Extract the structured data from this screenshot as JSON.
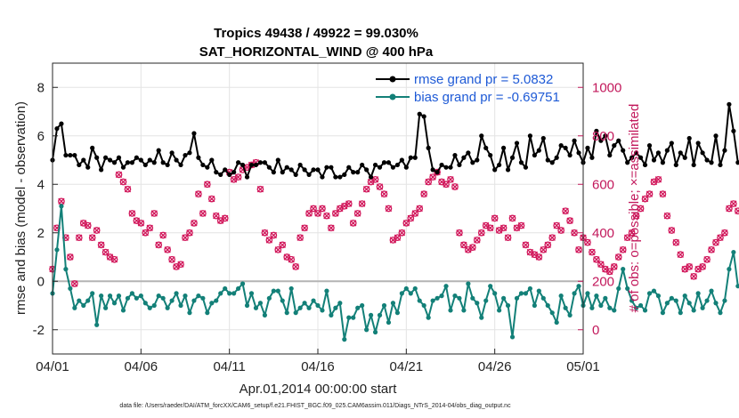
{
  "chart_data": {
    "type": "line",
    "title_line1": "Tropics 49438 / 49922 = 99.030%",
    "title_line2": "SAT_HORIZONTAL_WIND @ 400 hPa",
    "xlabel": "Apr.01,2014 00:00:00 start",
    "ylabel_left": "rmse and bias (model - observation)",
    "ylabel_right": "# of obs: o=possible; ×=assimilated",
    "x_tick_labels": [
      "04/01",
      "04/06",
      "04/11",
      "04/16",
      "04/21",
      "04/26",
      "05/01"
    ],
    "x_tick_days": [
      0,
      5,
      10,
      15,
      20,
      25,
      30
    ],
    "xlim": [
      0,
      30
    ],
    "ylim_left": [
      -3,
      9
    ],
    "left_ticks": [
      -2,
      0,
      2,
      4,
      6,
      8
    ],
    "ylim_right": [
      -100,
      1100
    ],
    "right_ticks": [
      0,
      200,
      400,
      600,
      800,
      1000
    ],
    "legend": [
      {
        "label": "rmse grand pr = 5.0832",
        "color": "#000000"
      },
      {
        "label": "bias grand pr = -0.69751",
        "color": "#138078"
      }
    ],
    "x_step_days": 0.25,
    "series": [
      {
        "name": "rmse",
        "color": "#000000",
        "values": [
          5.0,
          6.3,
          6.5,
          5.2,
          5.2,
          5.2,
          4.8,
          5.0,
          4.7,
          5.5,
          5.1,
          4.6,
          5.1,
          5.0,
          4.9,
          5.1,
          4.7,
          4.9,
          4.9,
          5.1,
          5.0,
          4.8,
          5.0,
          4.9,
          5.4,
          4.9,
          4.8,
          5.3,
          5.0,
          4.8,
          5.2,
          5.3,
          6.1,
          5.1,
          4.8,
          4.7,
          5.0,
          4.5,
          4.4,
          4.6,
          4.4,
          4.5,
          4.9,
          4.8,
          4.3,
          4.8,
          4.8,
          4.9,
          4.9,
          4.7,
          4.5,
          5.0,
          4.5,
          4.7,
          4.6,
          4.4,
          4.8,
          4.6,
          4.4,
          4.6,
          4.6,
          4.3,
          4.7,
          4.7,
          4.3,
          4.3,
          4.4,
          4.7,
          4.5,
          4.5,
          4.8,
          4.6,
          4.3,
          4.8,
          4.7,
          4.9,
          4.9,
          4.7,
          4.8,
          5.0,
          4.7,
          5.1,
          5.1,
          6.9,
          6.8,
          5.5,
          4.6,
          4.5,
          4.8,
          4.7,
          4.7,
          5.2,
          4.8,
          5.1,
          5.3,
          4.9,
          5.0,
          6.0,
          5.5,
          5.2,
          4.6,
          4.8,
          5.5,
          4.6,
          5.1,
          5.7,
          4.9,
          4.7,
          6.0,
          5.2,
          5.4,
          5.9,
          5.0,
          4.9,
          5.1,
          5.6,
          5.5,
          5.2,
          5.8,
          5.3,
          4.9,
          5.5,
          5.1,
          6.2,
          5.8,
          6.0,
          5.2,
          5.6,
          5.8,
          5.4,
          4.9,
          5.1,
          5.3,
          5.1,
          4.8,
          5.6,
          5.0,
          5.3,
          4.9,
          5.4,
          5.7,
          4.8,
          5.3,
          5.1,
          5.9,
          4.8,
          5.7,
          5.3,
          5.0,
          4.9,
          6.0,
          4.8,
          5.4,
          7.3,
          6.2,
          4.9
        ]
      },
      {
        "name": "bias",
        "color": "#138078",
        "values": [
          -0.5,
          1.3,
          3.1,
          0.5,
          -0.3,
          -1.1,
          -0.8,
          -1.0,
          -0.8,
          -0.5,
          -1.8,
          -0.6,
          -1.1,
          -0.6,
          -0.9,
          -0.6,
          -1.2,
          -0.7,
          -0.5,
          -0.7,
          -0.6,
          -0.9,
          -1.1,
          -1.0,
          -0.6,
          -0.7,
          -1.1,
          -0.8,
          -0.5,
          -1.0,
          -0.6,
          -1.3,
          -0.8,
          -0.6,
          -0.7,
          -1.3,
          -0.9,
          -0.8,
          -0.5,
          -0.3,
          -0.5,
          -0.5,
          -0.3,
          -0.1,
          -1.0,
          -0.5,
          -1.1,
          -0.9,
          -1.4,
          -0.7,
          -0.4,
          -0.4,
          -0.8,
          -1.3,
          -0.3,
          -1.3,
          -1.1,
          -0.9,
          -1.1,
          -0.8,
          -1.0,
          -1.2,
          -0.4,
          -1.4,
          -1.1,
          -0.9,
          -2.4,
          -1.5,
          -1.5,
          -1.1,
          -1.0,
          -2.0,
          -1.4,
          -2.1,
          -1.4,
          -1.0,
          -1.7,
          -0.9,
          -1.3,
          -0.5,
          -0.3,
          -0.5,
          -0.3,
          -0.8,
          -1.0,
          -1.5,
          -0.8,
          -0.7,
          -0.6,
          -0.2,
          -1.2,
          -0.6,
          -0.7,
          -1.2,
          -0.1,
          -0.7,
          -0.9,
          -1.5,
          -0.8,
          -0.2,
          -0.5,
          -1.2,
          -0.7,
          -1.0,
          -2.3,
          -0.7,
          -0.5,
          -0.5,
          -0.3,
          -1.0,
          -0.4,
          -0.7,
          -1.0,
          -1.3,
          -1.7,
          -0.6,
          -1.1,
          -1.4,
          -0.5,
          -0.2,
          -1.0,
          -0.5,
          -1.1,
          -0.6,
          -1.0,
          -0.7,
          -1.1,
          -1.2,
          -0.3,
          0.5,
          -0.3,
          -0.8,
          -1.1,
          -1.0,
          -1.2,
          -0.5,
          -0.4,
          -0.6,
          -1.3,
          -0.9,
          -0.7,
          -0.8,
          -1.3,
          -0.6,
          -0.9,
          -1.2,
          -0.5,
          -1.1,
          -0.8,
          -0.4,
          -0.9,
          -1.3,
          -0.8,
          0.5,
          1.2,
          -0.2
        ]
      },
      {
        "name": "obs_possible",
        "axis": "right",
        "color": "#d1165a",
        "values": [
          250,
          420,
          530,
          380,
          300,
          190,
          380,
          440,
          430,
          380,
          410,
          350,
          320,
          300,
          290,
          640,
          610,
          580,
          480,
          450,
          440,
          400,
          420,
          480,
          350,
          390,
          330,
          290,
          260,
          270,
          380,
          400,
          440,
          560,
          480,
          600,
          540,
          470,
          450,
          460,
          650,
          620,
          630,
          660,
          670,
          680,
          690,
          580,
          400,
          370,
          390,
          330,
          350,
          300,
          290,
          260,
          380,
          420,
          480,
          500,
          480,
          500,
          470,
          420,
          480,
          500,
          510,
          520,
          440,
          480,
          520,
          580,
          610,
          620,
          590,
          560,
          500,
          370,
          380,
          400,
          440,
          460,
          480,
          500,
          560,
          610,
          630,
          650,
          610,
          600,
          620,
          590,
          400,
          350,
          330,
          340,
          370,
          400,
          430,
          420,
          460,
          410,
          420,
          380,
          460,
          420,
          430,
          350,
          320,
          310,
          300,
          330,
          350,
          380,
          430,
          410,
          490,
          450,
          400,
          330,
          380,
          360,
          320,
          290,
          270,
          250,
          240,
          260,
          300,
          330,
          380,
          400,
          470,
          500,
          540,
          560,
          610,
          620,
          560,
          470,
          410,
          360,
          310,
          250,
          260,
          220,
          250,
          260,
          290,
          330,
          360,
          380,
          400,
          500,
          520,
          490
        ]
      }
    ]
  },
  "footnote": "data file: /Users/raeder/DAI/ATM_forcXX/CAM6_setup/f.e21.FHIST_BGC.f09_025.CAM6assim.011/Diags_NTrS_2014-04/obs_diag_output.nc"
}
